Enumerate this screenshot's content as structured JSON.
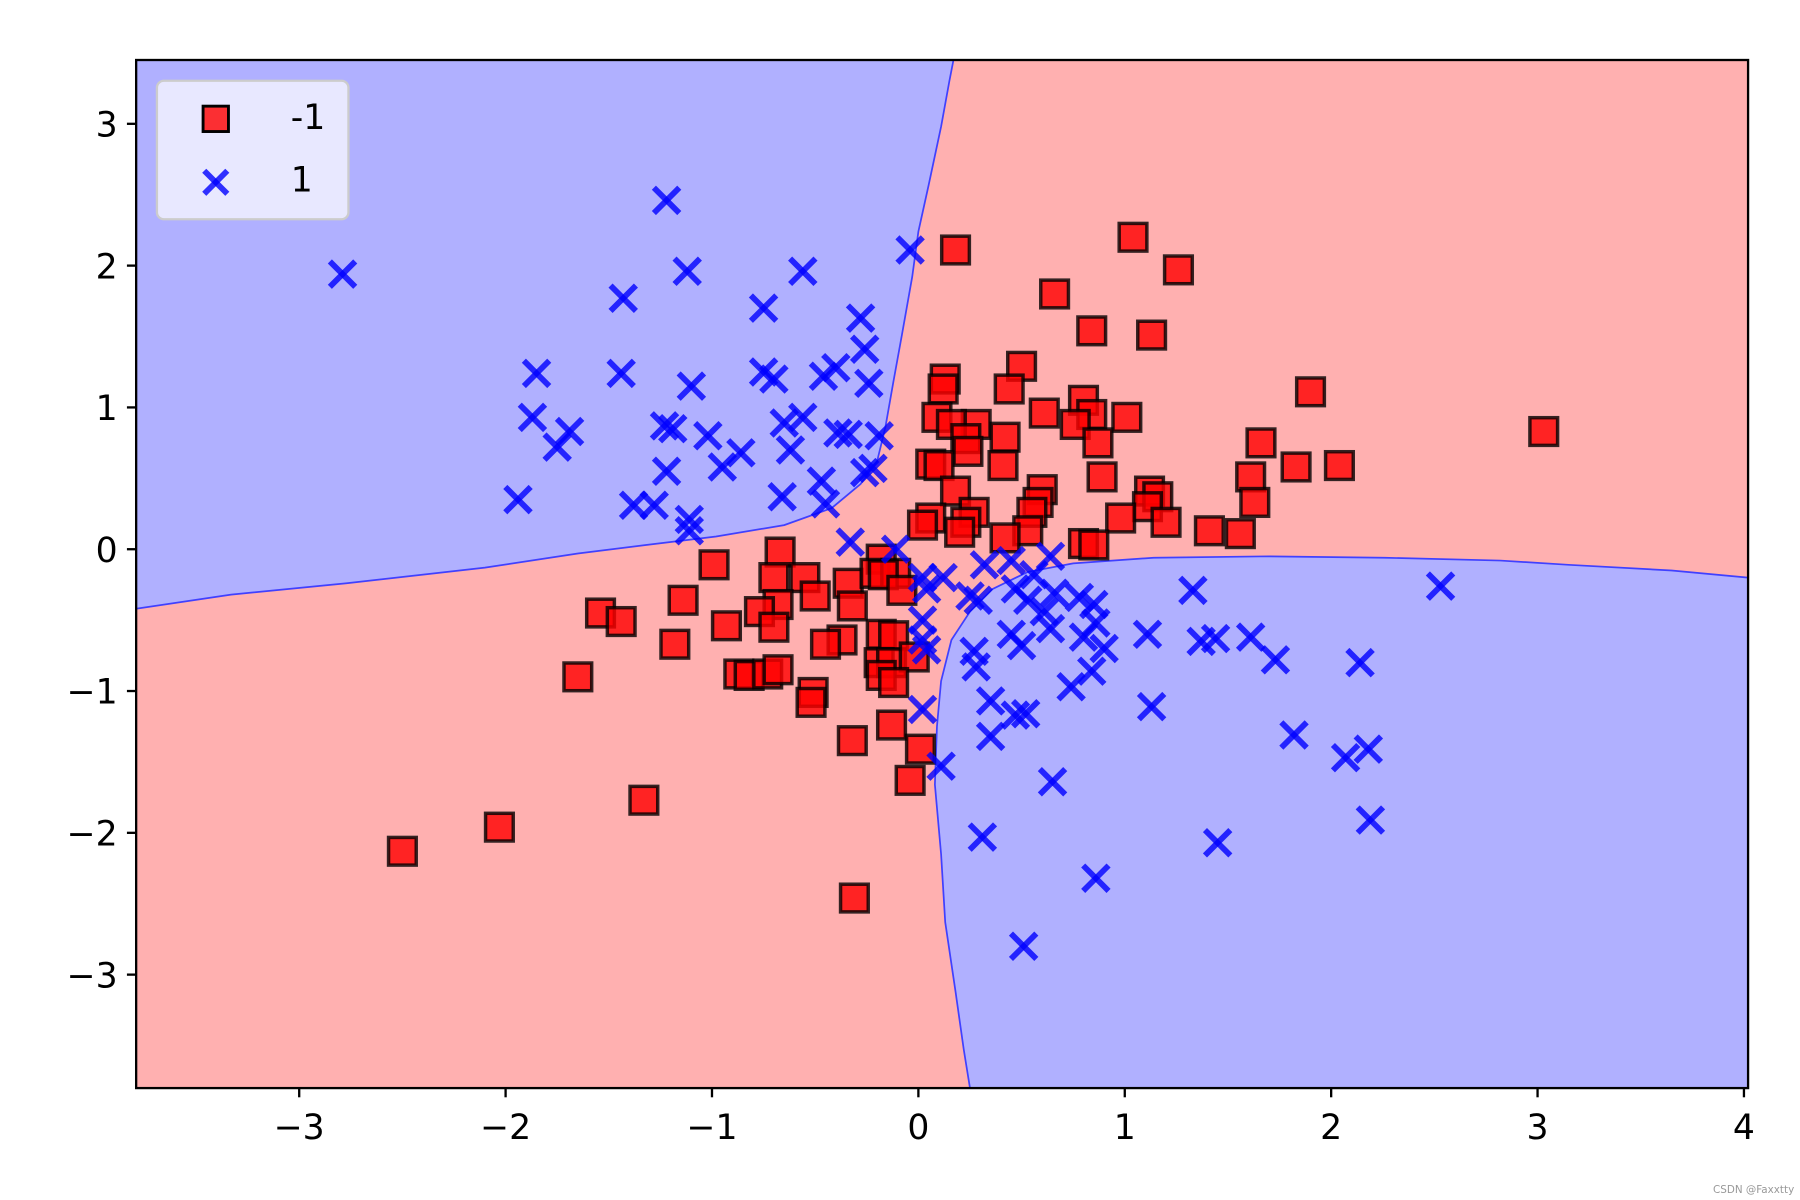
{
  "chart_data": {
    "type": "scatter",
    "title": "",
    "xlabel": "",
    "ylabel": "",
    "xlim": [
      -3.79,
      4.02
    ],
    "ylim": [
      -3.8,
      3.45
    ],
    "xticks": [
      -3,
      -2,
      -1,
      0,
      1,
      2,
      3,
      4
    ],
    "yticks": [
      -3,
      -2,
      -1,
      0,
      1,
      2,
      3
    ],
    "xtick_labels": [
      "−3",
      "−2",
      "−1",
      "0",
      "1",
      "2",
      "3",
      "4"
    ],
    "ytick_labels": [
      "−3",
      "−2",
      "−1",
      "0",
      "1",
      "2",
      "3"
    ],
    "grid": false,
    "legend": {
      "placement": "top-left",
      "entries": [
        "-1",
        "1"
      ]
    },
    "region_colors": {
      "-1": "#ffb0b0",
      "1": "#b0b0ff"
    },
    "decision_regions": [
      {
        "class": "1",
        "polygon": [
          [
            -3.79,
            3.45
          ],
          [
            0.17,
            3.45
          ],
          [
            0.15,
            3.3
          ],
          [
            0.11,
            2.98
          ],
          [
            0.05,
            2.57
          ],
          [
            0.0,
            2.24
          ],
          [
            -0.03,
            1.92
          ],
          [
            -0.08,
            1.51
          ],
          [
            -0.12,
            1.19
          ],
          [
            -0.16,
            0.86
          ],
          [
            -0.2,
            0.62
          ],
          [
            -0.28,
            0.46
          ],
          [
            -0.42,
            0.29
          ],
          [
            -0.65,
            0.17
          ],
          [
            -0.98,
            0.09
          ],
          [
            -1.32,
            0.03
          ],
          [
            -1.65,
            -0.03
          ],
          [
            -2.1,
            -0.13
          ],
          [
            -2.77,
            -0.24
          ],
          [
            -3.33,
            -0.32
          ],
          [
            -3.79,
            -0.42
          ]
        ]
      },
      {
        "class": "1",
        "polygon": [
          [
            4.02,
            -0.2
          ],
          [
            3.65,
            -0.15
          ],
          [
            3.15,
            -0.11
          ],
          [
            2.82,
            -0.08
          ],
          [
            2.26,
            -0.06
          ],
          [
            1.7,
            -0.05
          ],
          [
            1.14,
            -0.06
          ],
          [
            0.75,
            -0.1
          ],
          [
            0.53,
            -0.16
          ],
          [
            0.36,
            -0.28
          ],
          [
            0.25,
            -0.44
          ],
          [
            0.16,
            -0.64
          ],
          [
            0.11,
            -0.93
          ],
          [
            0.09,
            -1.25
          ],
          [
            0.08,
            -1.66
          ],
          [
            0.11,
            -2.15
          ],
          [
            0.13,
            -2.63
          ],
          [
            0.18,
            -3.12
          ],
          [
            0.22,
            -3.53
          ],
          [
            0.25,
            -3.8
          ],
          [
            4.02,
            -3.8
          ]
        ]
      }
    ],
    "series": [
      {
        "name": "-1",
        "marker": "square",
        "color": "#ff0000",
        "points": [
          [
            0.18,
            2.11
          ],
          [
            1.04,
            2.2
          ],
          [
            1.26,
            1.97
          ],
          [
            0.66,
            1.8
          ],
          [
            0.84,
            1.54
          ],
          [
            1.13,
            1.51
          ],
          [
            0.5,
            1.29
          ],
          [
            0.13,
            1.2
          ],
          [
            0.12,
            1.13
          ],
          [
            0.44,
            1.13
          ],
          [
            1.9,
            1.11
          ],
          [
            0.8,
            1.05
          ],
          [
            0.61,
            0.96
          ],
          [
            0.84,
            0.95
          ],
          [
            1.01,
            0.93
          ],
          [
            0.09,
            0.93
          ],
          [
            0.28,
            0.88
          ],
          [
            0.16,
            0.88
          ],
          [
            0.76,
            0.88
          ],
          [
            3.03,
            0.83
          ],
          [
            0.23,
            0.78
          ],
          [
            0.42,
            0.79
          ],
          [
            1.66,
            0.75
          ],
          [
            0.87,
            0.75
          ],
          [
            0.24,
            0.69
          ],
          [
            0.06,
            0.6
          ],
          [
            0.41,
            0.59
          ],
          [
            0.1,
            0.59
          ],
          [
            1.83,
            0.58
          ],
          [
            2.04,
            0.59
          ],
          [
            1.61,
            0.51
          ],
          [
            0.89,
            0.51
          ],
          [
            0.6,
            0.42
          ],
          [
            1.12,
            0.41
          ],
          [
            0.18,
            0.41
          ],
          [
            1.16,
            0.37
          ],
          [
            0.58,
            0.33
          ],
          [
            1.63,
            0.33
          ],
          [
            1.11,
            0.3
          ],
          [
            0.27,
            0.26
          ],
          [
            0.55,
            0.26
          ],
          [
            0.06,
            0.22
          ],
          [
            0.98,
            0.22
          ],
          [
            0.23,
            0.19
          ],
          [
            1.2,
            0.19
          ],
          [
            0.02,
            0.17
          ],
          [
            0.53,
            0.13
          ],
          [
            1.41,
            0.13
          ],
          [
            0.2,
            0.12
          ],
          [
            1.56,
            0.11
          ],
          [
            0.42,
            0.08
          ],
          [
            0.8,
            0.04
          ],
          [
            0.85,
            0.03
          ],
          [
            -0.67,
            -0.02
          ],
          [
            -0.99,
            -0.11
          ],
          [
            -0.18,
            -0.07
          ],
          [
            -0.7,
            -0.2
          ],
          [
            -0.55,
            -0.2
          ],
          [
            -0.34,
            -0.24
          ],
          [
            -0.21,
            -0.17
          ],
          [
            -0.11,
            -0.17
          ],
          [
            -0.17,
            -0.18
          ],
          [
            -0.08,
            -0.29
          ],
          [
            -0.5,
            -0.33
          ],
          [
            -1.14,
            -0.36
          ],
          [
            -0.68,
            -0.39
          ],
          [
            -0.32,
            -0.4
          ],
          [
            -0.77,
            -0.44
          ],
          [
            -1.54,
            -0.45
          ],
          [
            -1.44,
            -0.51
          ],
          [
            -0.93,
            -0.54
          ],
          [
            -0.7,
            -0.55
          ],
          [
            -0.18,
            -0.6
          ],
          [
            -0.12,
            -0.61
          ],
          [
            -0.37,
            -0.64
          ],
          [
            -0.45,
            -0.67
          ],
          [
            -1.18,
            -0.67
          ],
          [
            -0.19,
            -0.8
          ],
          [
            -0.13,
            -0.8
          ],
          [
            -0.02,
            -0.76
          ],
          [
            -1.65,
            -0.9
          ],
          [
            -0.87,
            -0.88
          ],
          [
            -0.82,
            -0.89
          ],
          [
            -0.73,
            -0.88
          ],
          [
            -0.68,
            -0.85
          ],
          [
            -0.18,
            -0.89
          ],
          [
            -0.12,
            -0.94
          ],
          [
            -0.51,
            -1.01
          ],
          [
            -0.52,
            -1.08
          ],
          [
            -0.13,
            -1.24
          ],
          [
            -0.32,
            -1.35
          ],
          [
            0.01,
            -1.41
          ],
          [
            -1.33,
            -1.77
          ],
          [
            -0.04,
            -1.63
          ],
          [
            -2.03,
            -1.96
          ],
          [
            -2.5,
            -2.13
          ],
          [
            -0.31,
            -2.46
          ]
        ]
      },
      {
        "name": "1",
        "marker": "x",
        "color": "#0000ff",
        "points": [
          [
            -1.22,
            2.46
          ],
          [
            -2.79,
            1.94
          ],
          [
            -1.12,
            1.96
          ],
          [
            -0.56,
            1.96
          ],
          [
            -0.04,
            2.11
          ],
          [
            -1.43,
            1.77
          ],
          [
            -0.75,
            1.7
          ],
          [
            -0.28,
            1.63
          ],
          [
            -0.26,
            1.41
          ],
          [
            -1.85,
            1.24
          ],
          [
            -1.44,
            1.24
          ],
          [
            -0.75,
            1.25
          ],
          [
            -0.7,
            1.2
          ],
          [
            -0.4,
            1.28
          ],
          [
            -0.46,
            1.22
          ],
          [
            -0.24,
            1.17
          ],
          [
            -1.1,
            1.15
          ],
          [
            -1.87,
            0.93
          ],
          [
            -0.56,
            0.93
          ],
          [
            -0.65,
            0.89
          ],
          [
            -1.69,
            0.83
          ],
          [
            -1.23,
            0.87
          ],
          [
            -1.19,
            0.85
          ],
          [
            -1.02,
            0.8
          ],
          [
            -0.39,
            0.82
          ],
          [
            -0.19,
            0.8
          ],
          [
            -0.34,
            0.81
          ],
          [
            -1.75,
            0.72
          ],
          [
            -0.86,
            0.68
          ],
          [
            -0.62,
            0.7
          ],
          [
            -0.95,
            0.58
          ],
          [
            -1.22,
            0.55
          ],
          [
            -0.26,
            0.54
          ],
          [
            -0.22,
            0.57
          ],
          [
            -0.47,
            0.48
          ],
          [
            -0.66,
            0.37
          ],
          [
            -1.94,
            0.35
          ],
          [
            -1.38,
            0.31
          ],
          [
            -1.28,
            0.31
          ],
          [
            -0.45,
            0.32
          ],
          [
            -1.11,
            0.21
          ],
          [
            -1.11,
            0.13
          ],
          [
            -0.33,
            0.05
          ],
          [
            -0.11,
            0.0
          ],
          [
            2.53,
            -0.26
          ],
          [
            1.33,
            -0.29
          ],
          [
            0.02,
            -0.2
          ],
          [
            0.12,
            -0.2
          ],
          [
            0.32,
            -0.11
          ],
          [
            0.45,
            -0.08
          ],
          [
            0.56,
            -0.18
          ],
          [
            0.64,
            -0.05
          ],
          [
            0.04,
            -0.28
          ],
          [
            0.25,
            -0.33
          ],
          [
            0.47,
            -0.28
          ],
          [
            0.66,
            -0.31
          ],
          [
            0.29,
            -0.36
          ],
          [
            0.53,
            -0.36
          ],
          [
            0.78,
            -0.34
          ],
          [
            0.85,
            -0.39
          ],
          [
            0.61,
            -0.44
          ],
          [
            0.02,
            -0.5
          ],
          [
            0.86,
            -0.52
          ],
          [
            0.64,
            -0.56
          ],
          [
            0.45,
            -0.6
          ],
          [
            0.02,
            -0.64
          ],
          [
            0.8,
            -0.62
          ],
          [
            1.11,
            -0.6
          ],
          [
            1.37,
            -0.65
          ],
          [
            1.44,
            -0.63
          ],
          [
            1.61,
            -0.62
          ],
          [
            0.5,
            -0.68
          ],
          [
            0.9,
            -0.7
          ],
          [
            0.04,
            -0.71
          ],
          [
            0.27,
            -0.72
          ],
          [
            0.28,
            -0.83
          ],
          [
            1.73,
            -0.78
          ],
          [
            2.14,
            -0.8
          ],
          [
            0.84,
            -0.86
          ],
          [
            0.74,
            -0.97
          ],
          [
            0.35,
            -1.07
          ],
          [
            0.02,
            -1.13
          ],
          [
            1.13,
            -1.11
          ],
          [
            0.47,
            -1.17
          ],
          [
            0.52,
            -1.16
          ],
          [
            0.35,
            -1.32
          ],
          [
            1.82,
            -1.31
          ],
          [
            2.07,
            -1.47
          ],
          [
            2.18,
            -1.41
          ],
          [
            0.11,
            -1.53
          ],
          [
            0.65,
            -1.64
          ],
          [
            2.19,
            -1.91
          ],
          [
            0.31,
            -2.03
          ],
          [
            1.45,
            -2.07
          ],
          [
            0.86,
            -2.32
          ],
          [
            0.51,
            -2.8
          ]
        ]
      }
    ]
  },
  "watermark": "CSDN @Faxxtty"
}
